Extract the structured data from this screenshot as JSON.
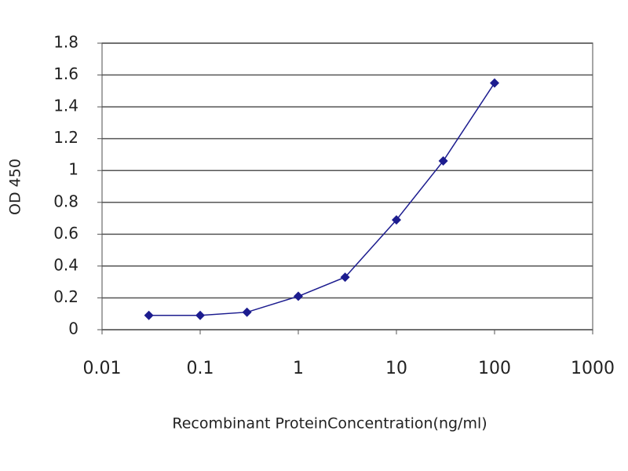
{
  "chart_data": {
    "type": "line",
    "x_label": "Recombinant ProteinConcentration(ng/ml)",
    "y_label": "OD 450",
    "xscale": "log",
    "x": [
      0.03,
      0.1,
      0.3,
      1,
      3,
      10,
      30,
      100
    ],
    "series": [
      {
        "color": "#1c1c8f",
        "values": [
          0.09,
          0.09,
          0.11,
          0.21,
          0.33,
          0.69,
          1.06,
          1.55
        ]
      }
    ],
    "xlim": [
      0.01,
      1000
    ],
    "xticks": [
      0.01,
      0.1,
      1,
      10,
      100,
      1000
    ],
    "ylim": [
      0,
      1.8
    ],
    "yticks": [
      0,
      0.2,
      0.4,
      0.6,
      0.8,
      1,
      1.2,
      1.4,
      1.6,
      1.8
    ],
    "grid": true
  }
}
